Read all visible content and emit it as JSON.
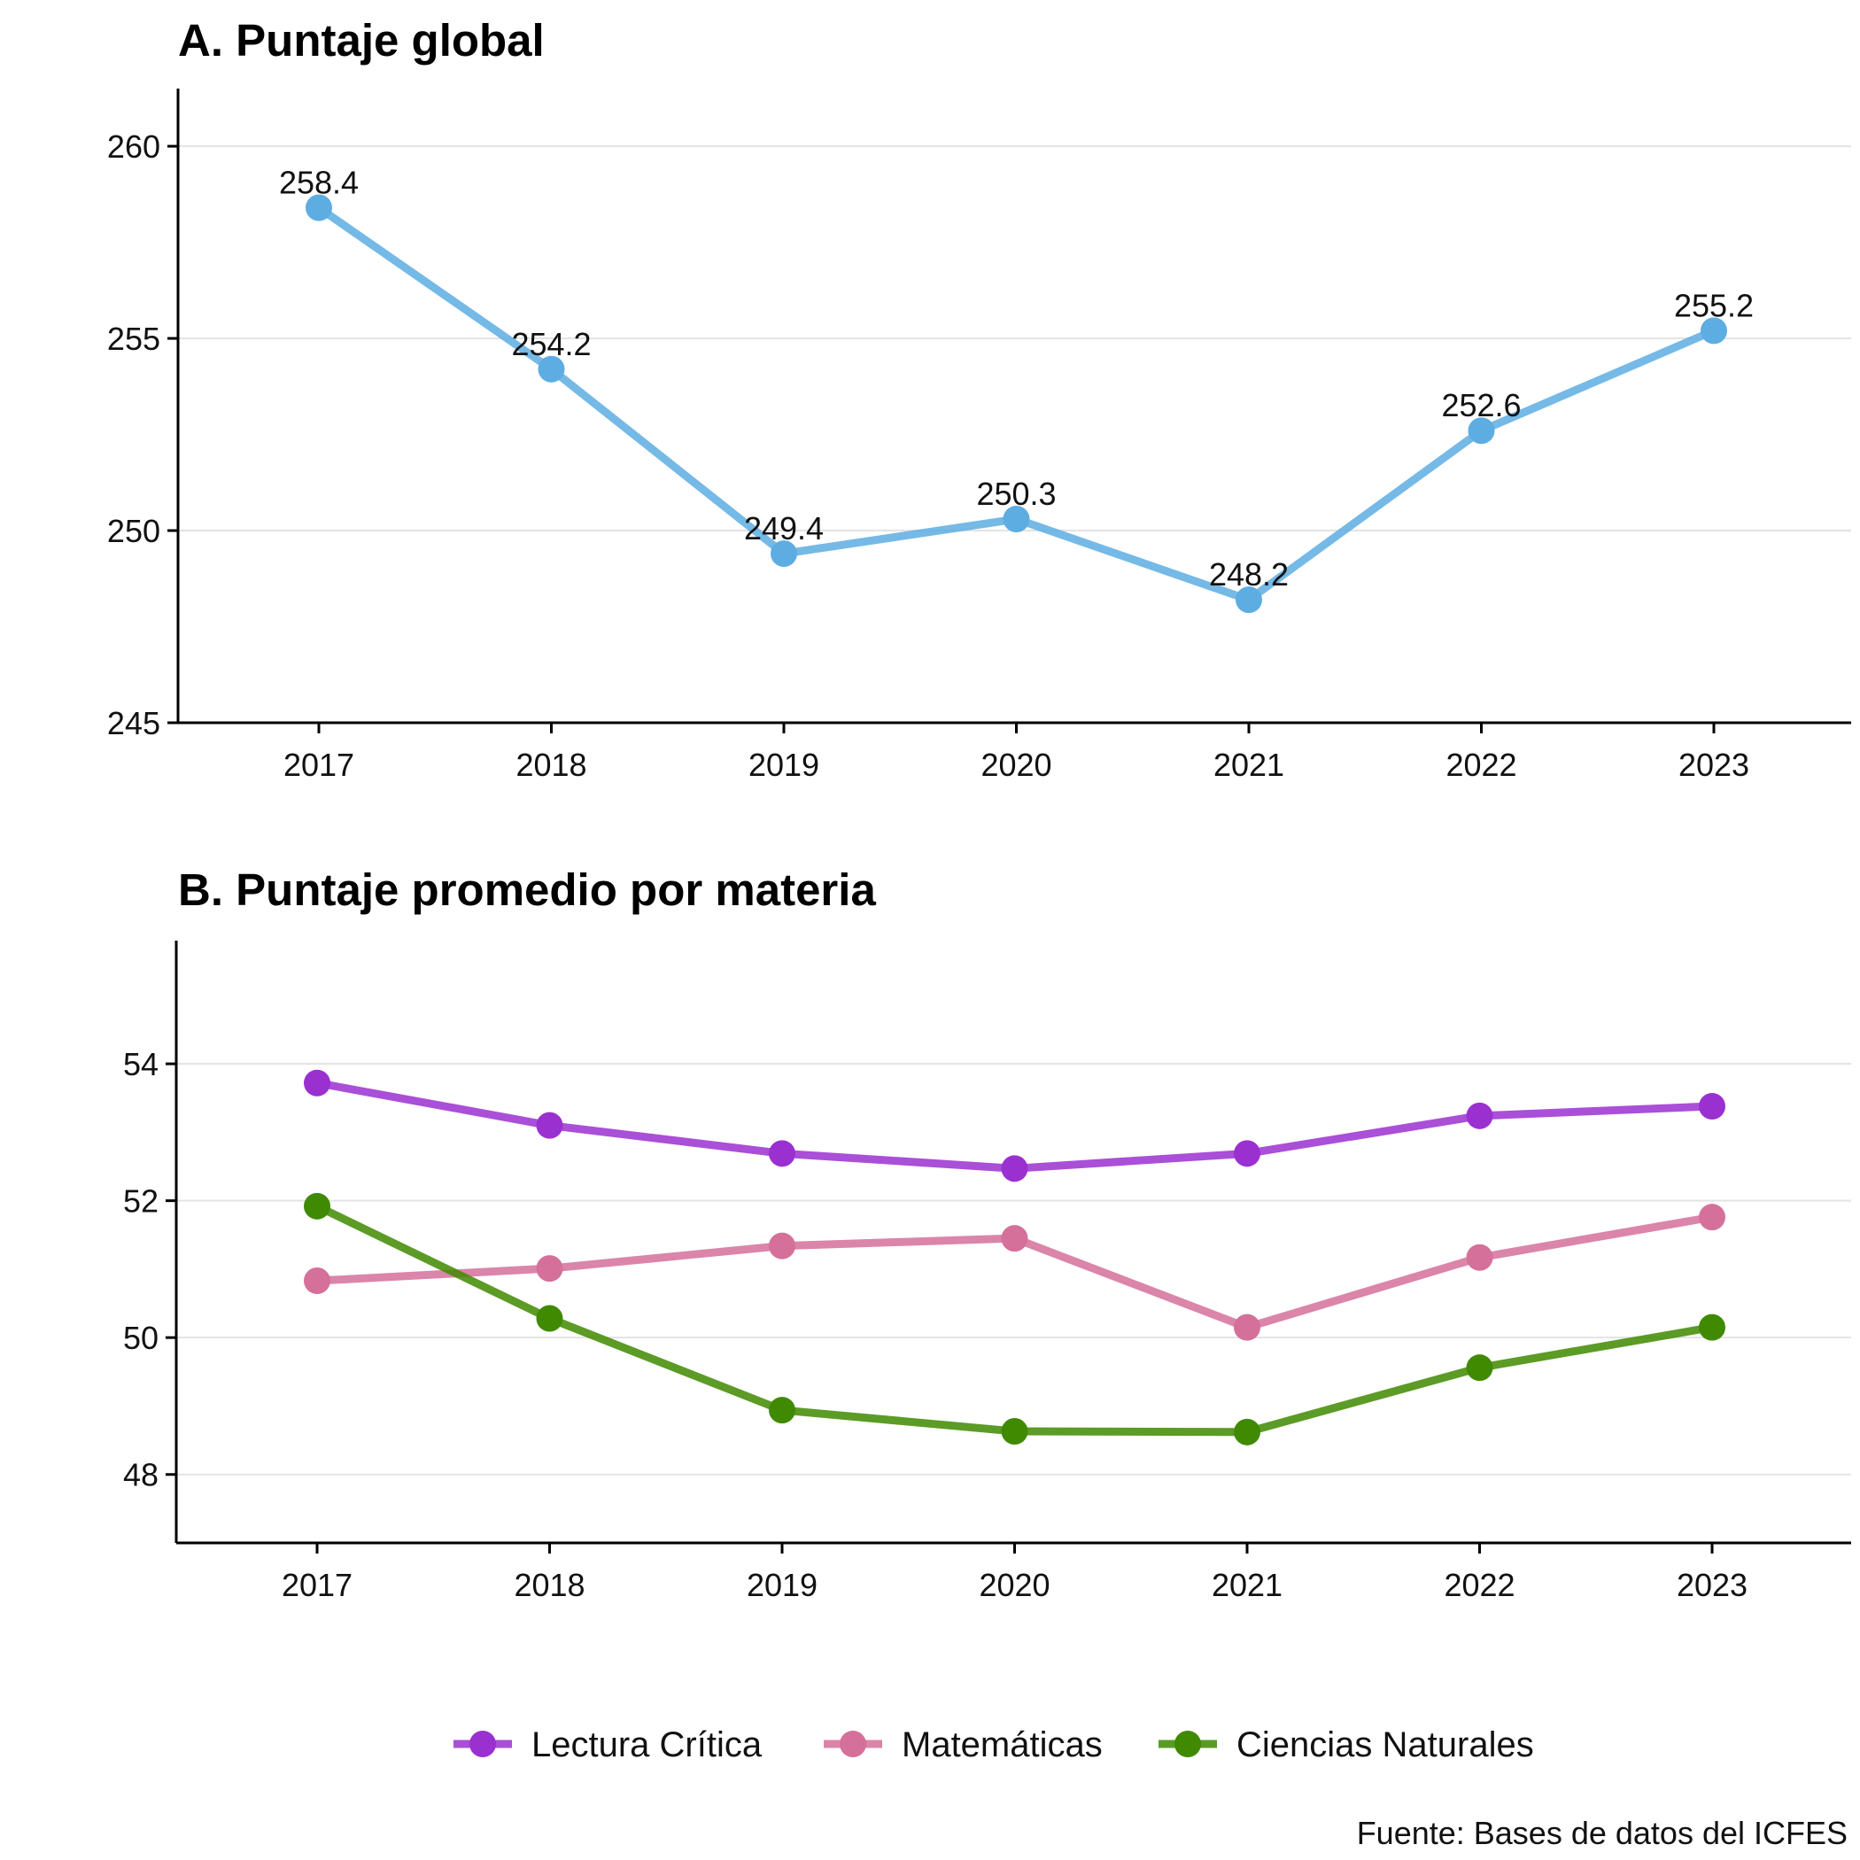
{
  "caption": "Fuente: Bases de datos del ICFES",
  "colors": {
    "global": "#5dade2",
    "series": [
      "#9b30d0",
      "#d4709a",
      "#3f8a00"
    ]
  },
  "chart_data": [
    {
      "type": "line",
      "title": "A. Puntaje global",
      "x": [
        "2017",
        "2018",
        "2019",
        "2020",
        "2021",
        "2022",
        "2023"
      ],
      "yticks": [
        245,
        250,
        255,
        260
      ],
      "ylim": [
        245,
        261.5
      ],
      "series": [
        {
          "values": [
            258.4,
            254.2,
            249.4,
            250.3,
            248.2,
            252.6,
            255.2
          ],
          "labels": [
            "258.4",
            "254.2",
            "249.4",
            "250.3",
            "248.2",
            "252.6",
            "255.2"
          ]
        }
      ],
      "grid": true,
      "legend": "none"
    },
    {
      "type": "line",
      "title": "B. Puntaje promedio por materia",
      "x": [
        "2017",
        "2018",
        "2019",
        "2020",
        "2021",
        "2022",
        "2023"
      ],
      "yticks": [
        48,
        50,
        52,
        54
      ],
      "ylim": [
        47,
        55.8
      ],
      "series": [
        {
          "name": "Lectura Crítica",
          "values": [
            53.72,
            53.1,
            52.69,
            52.47,
            52.69,
            53.24,
            53.38
          ]
        },
        {
          "name": "Matemáticas",
          "values": [
            50.83,
            51.01,
            51.34,
            51.45,
            50.15,
            51.17,
            51.76
          ]
        },
        {
          "name": "Ciencias Naturales",
          "values": [
            51.92,
            50.28,
            48.94,
            48.63,
            48.62,
            49.56,
            50.15
          ]
        }
      ],
      "grid": true,
      "legend": "bottom"
    }
  ]
}
